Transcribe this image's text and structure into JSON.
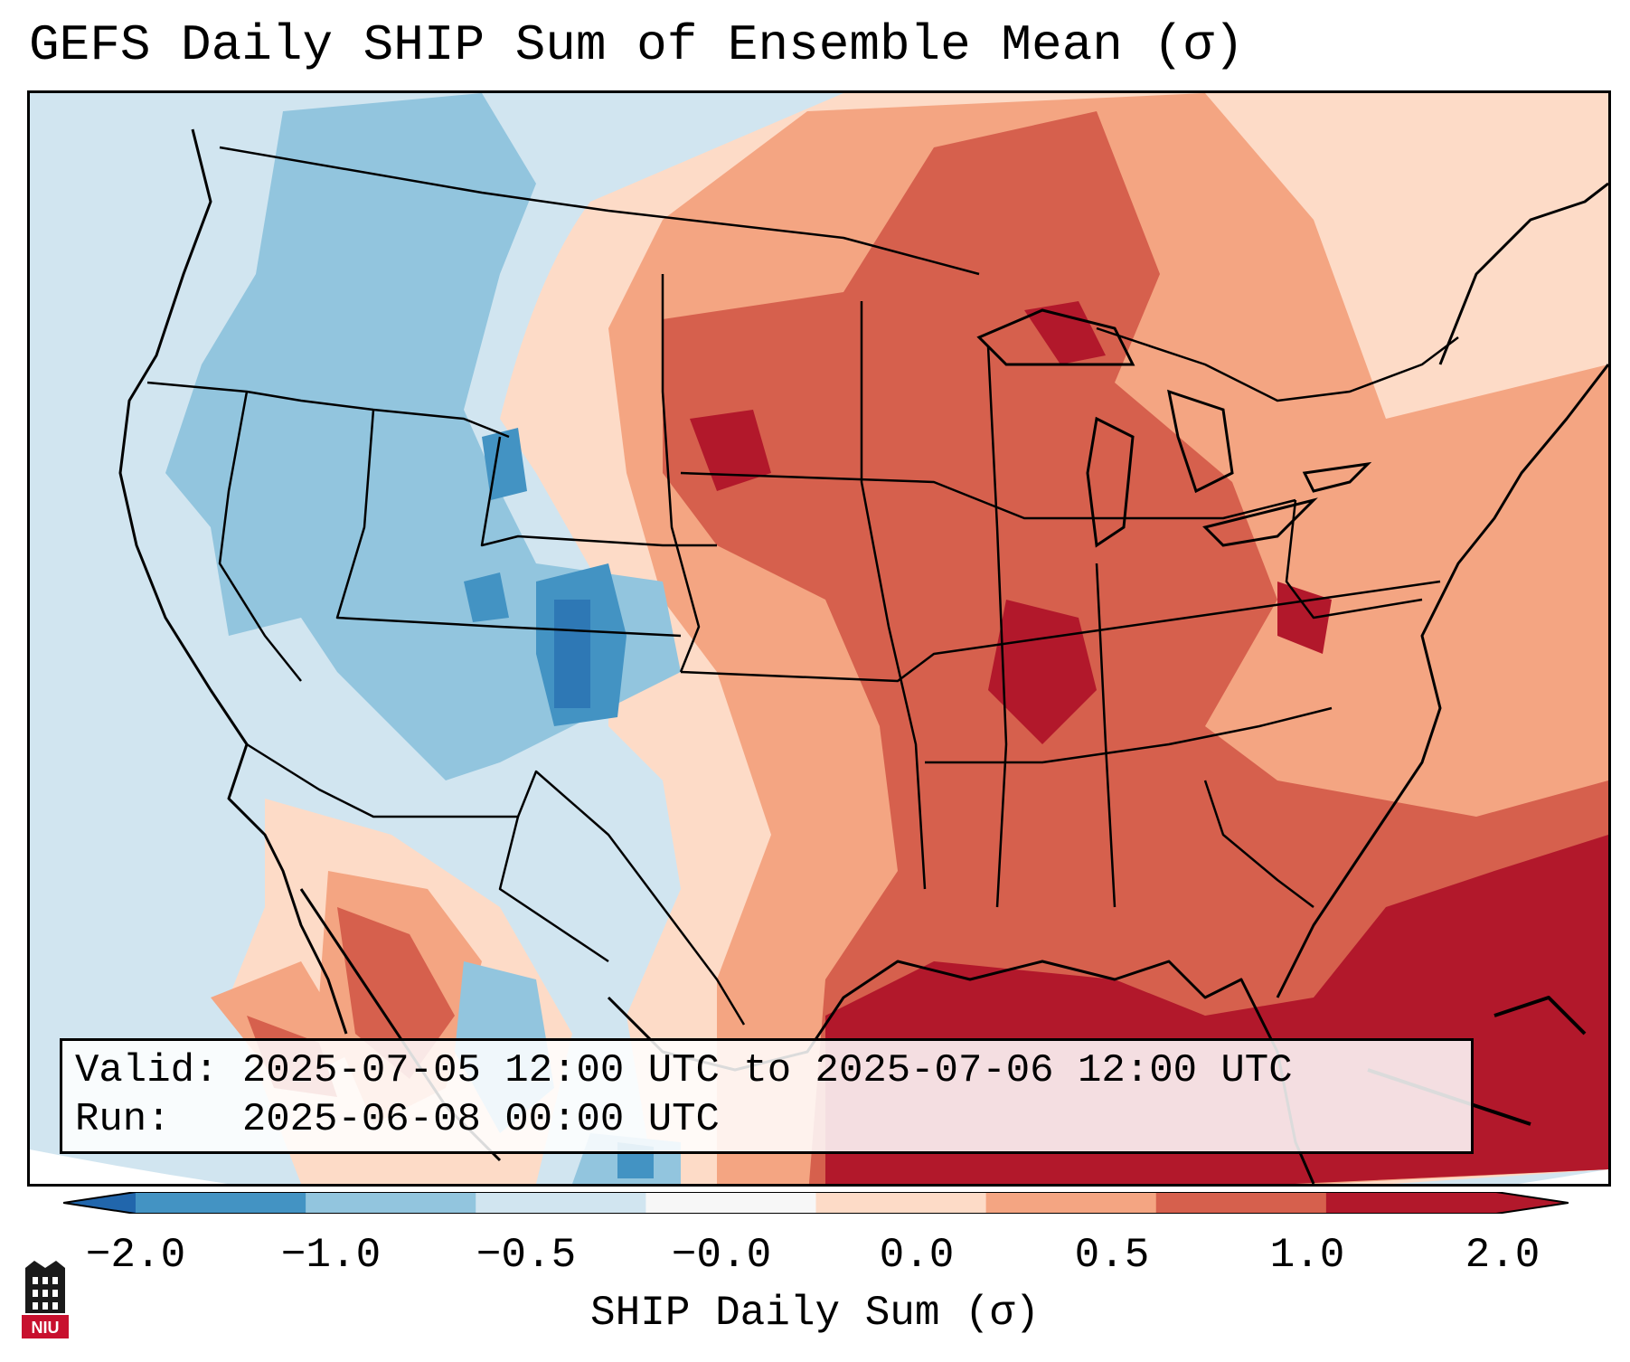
{
  "title": "GEFS Daily SHIP Sum of Ensemble Mean (σ)",
  "info": {
    "valid_line": "Valid: 2025-07-05 12:00 UTC to 2025-07-06 12:00 UTC",
    "run_line": "Run:   2025-06-08 00:00 UTC"
  },
  "colorbar": {
    "label": "SHIP Daily Sum (σ)",
    "ticks": [
      "−2.0",
      "−1.0",
      "−0.5",
      "−0.0",
      "0.0",
      "0.5",
      "1.0",
      "2.0"
    ],
    "colors": [
      "#4393c3",
      "#92c5de",
      "#d1e5f0",
      "#f7f7f7",
      "#fddbc7",
      "#f4a582",
      "#d6604d",
      "#b2182b"
    ],
    "extend_low_color": "#2166ac",
    "extend_high_color": "#b2182b"
  },
  "logo": {
    "text": "NIU",
    "color": "#c8102e"
  }
}
